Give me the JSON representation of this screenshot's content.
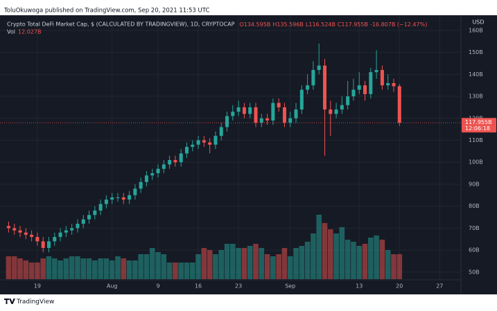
{
  "header": {
    "published": "ToluOkuwoga published on TradingView.com, Sep 20, 2021 11:53 UTC"
  },
  "footer": {
    "brand": "TradingView"
  },
  "chart_data": {
    "type": "candlestick",
    "title": "Crypto Total DeFi Market Cap, $ (CALCULATED BY TRADINGVIEW), 1D, CRYPTOCAP",
    "legend_values": {
      "open": "O134.595B",
      "high": "H135.596B",
      "low": "L116.524B",
      "close": "C117.955B",
      "change": "-16.807B (−12.47%)"
    },
    "currency": "USD",
    "price_tag": {
      "label": "117.955B",
      "countdown": "12:06:18"
    },
    "up_color": "#26a69a",
    "down_color": "#ef5350",
    "grid": true,
    "open": [
      71,
      70,
      69,
      68,
      67,
      66,
      64,
      61,
      64,
      66,
      68,
      69,
      70,
      72,
      74,
      76,
      78,
      81,
      83,
      84,
      84,
      83,
      85,
      88,
      91,
      94,
      95,
      97,
      99,
      101,
      100,
      104,
      107,
      108,
      110,
      109,
      108,
      112,
      116,
      121,
      123,
      125,
      122,
      125,
      118,
      120,
      119,
      127,
      125,
      118,
      120,
      124,
      133,
      135,
      142,
      144,
      124,
      122,
      124,
      126,
      130,
      133,
      135,
      131,
      141,
      142,
      135,
      136,
      134.595
    ],
    "high": [
      73,
      72,
      71,
      70,
      69,
      68,
      66,
      66,
      68,
      70,
      71,
      72,
      74,
      76,
      78,
      80,
      83,
      85,
      86,
      86,
      86,
      87,
      90,
      93,
      96,
      97,
      99,
      101,
      103,
      103,
      106,
      109,
      110,
      112,
      112,
      111,
      114,
      118,
      123,
      126,
      128,
      127,
      127,
      127,
      122,
      122,
      129,
      129,
      127,
      123,
      127,
      135,
      140,
      146,
      154,
      147,
      128,
      127,
      130,
      137,
      138,
      141,
      137,
      143,
      151,
      144,
      140,
      138,
      135.596
    ],
    "low": [
      68,
      67,
      66,
      65,
      64,
      62,
      59,
      59,
      62,
      64,
      66,
      67,
      68,
      70,
      72,
      74,
      76,
      79,
      81,
      82,
      81,
      81,
      83,
      86,
      89,
      92,
      93,
      95,
      97,
      98,
      98,
      102,
      105,
      106,
      107,
      104,
      106,
      110,
      114,
      119,
      121,
      120,
      120,
      116,
      116,
      117,
      117,
      123,
      116,
      116,
      118,
      122,
      131,
      133,
      140,
      103,
      112,
      120,
      122,
      124,
      128,
      131,
      128,
      129,
      138,
      133,
      133,
      132,
      116.524
    ],
    "close": [
      70,
      69,
      68,
      67,
      66,
      64,
      61,
      64,
      66,
      68,
      69,
      70,
      72,
      74,
      76,
      78,
      81,
      83,
      84,
      84,
      83,
      85,
      88,
      91,
      94,
      95,
      97,
      99,
      101,
      100,
      104,
      107,
      108,
      110,
      109,
      108,
      112,
      116,
      121,
      123,
      125,
      122,
      125,
      118,
      120,
      119,
      127,
      125,
      118,
      120,
      124,
      133,
      135,
      142,
      144,
      124,
      122,
      124,
      126,
      130,
      133,
      135,
      131,
      141,
      142,
      135,
      136,
      134.6,
      117.955
    ],
    "volume": {
      "name": "Vol",
      "value_label": "12.027B",
      "values": [
        11,
        11,
        10,
        9,
        8,
        8,
        10,
        11,
        10,
        9,
        10,
        11,
        11,
        10,
        10,
        9,
        10,
        10,
        9,
        11,
        10,
        9,
        9,
        12,
        12,
        15,
        13,
        12,
        8,
        8,
        8,
        8,
        8,
        12,
        15,
        14,
        12,
        14,
        17,
        17,
        15,
        15,
        16,
        17,
        15,
        12,
        11,
        12,
        15,
        11,
        15,
        16,
        18,
        22,
        31,
        27,
        24,
        22,
        25,
        19,
        18,
        16,
        17,
        20,
        21,
        19,
        14,
        12,
        12.027
      ]
    },
    "xlim": [
      -1.5,
      78.7
    ],
    "xticks": [
      {
        "value": 5,
        "label": "19"
      },
      {
        "value": 18,
        "label": "Aug"
      },
      {
        "value": 26,
        "label": "9"
      },
      {
        "value": 33,
        "label": "16"
      },
      {
        "value": 40,
        "label": "23"
      },
      {
        "value": 49,
        "label": "Sep"
      },
      {
        "value": 61,
        "label": "13"
      },
      {
        "value": 68,
        "label": "20"
      },
      {
        "value": 75,
        "label": "27"
      }
    ],
    "ylim": [
      46.8,
      166.9
    ],
    "yticks": [
      {
        "value": 50,
        "label": "50B"
      },
      {
        "value": 60,
        "label": "60B"
      },
      {
        "value": 70,
        "label": "70B"
      },
      {
        "value": 80,
        "label": "80B"
      },
      {
        "value": 90,
        "label": "90B"
      },
      {
        "value": 100,
        "label": "100B"
      },
      {
        "value": 110,
        "label": "110B"
      },
      {
        "value": 120,
        "label": "120B"
      },
      {
        "value": 130,
        "label": "130B"
      },
      {
        "value": 140,
        "label": "140B"
      },
      {
        "value": 150,
        "label": "150B"
      },
      {
        "value": 160,
        "label": "160B"
      }
    ]
  }
}
